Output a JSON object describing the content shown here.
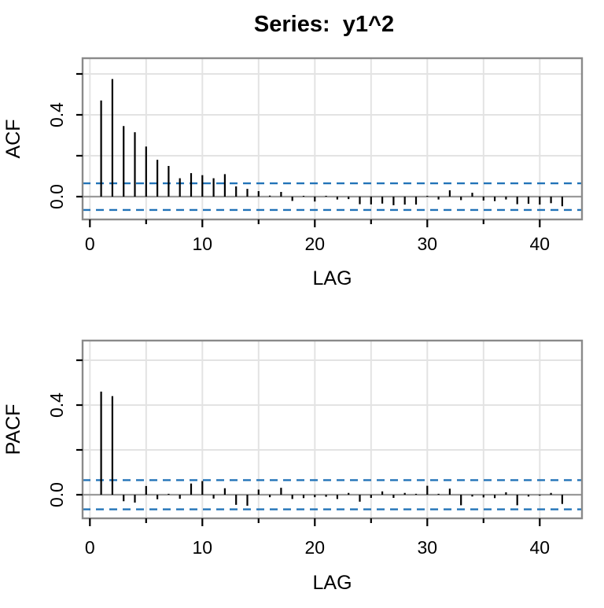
{
  "title": "Series:  y1^2",
  "colors": {
    "bar": "#000000",
    "ci_line": "#2273b8",
    "zero_line": "#9a9a9a",
    "grid": "#e3e3e3",
    "border": "#8a8a8a",
    "background": "#ffffff",
    "text": "#000000"
  },
  "chart_data": [
    {
      "type": "bar",
      "subtype": "stem-acf",
      "name": "ACF",
      "ylabel": "ACF",
      "xlabel": "LAG",
      "lags": [
        1,
        2,
        3,
        4,
        5,
        6,
        7,
        8,
        9,
        10,
        11,
        12,
        13,
        14,
        15,
        16,
        17,
        18,
        19,
        20,
        21,
        22,
        23,
        24,
        25,
        26,
        27,
        28,
        29,
        30,
        31,
        32,
        33,
        34,
        35,
        36,
        37,
        38,
        39,
        40,
        41,
        42
      ],
      "values": [
        0.47,
        0.575,
        0.345,
        0.315,
        0.245,
        0.18,
        0.15,
        0.09,
        0.115,
        0.105,
        0.09,
        0.11,
        0.05,
        0.038,
        0.027,
        0.005,
        0.023,
        -0.021,
        0.004,
        -0.024,
        0.004,
        -0.014,
        -0.012,
        -0.037,
        -0.038,
        -0.034,
        -0.042,
        -0.039,
        -0.039,
        0.004,
        -0.014,
        0.031,
        -0.017,
        0.019,
        -0.019,
        -0.022,
        -0.014,
        -0.037,
        -0.035,
        -0.039,
        -0.032,
        -0.047
      ],
      "conf_band": 0.065,
      "ylim": [
        -0.112,
        0.677
      ],
      "yticks": [
        0.0,
        0.2,
        0.4,
        0.6
      ],
      "ytick_labels": [
        "0.0",
        "",
        "0.4",
        ""
      ],
      "xticks": [
        0,
        5,
        10,
        15,
        20,
        25,
        30,
        35,
        40
      ],
      "xtick_labels": [
        "0",
        "",
        "10",
        "",
        "20",
        "",
        "30",
        "",
        "40"
      ],
      "grid": true,
      "legend": "none"
    },
    {
      "type": "bar",
      "subtype": "stem-pacf",
      "name": "PACF",
      "ylabel": "PACF",
      "xlabel": "LAG",
      "lags": [
        1,
        2,
        3,
        4,
        5,
        6,
        7,
        8,
        9,
        10,
        11,
        12,
        13,
        14,
        15,
        16,
        17,
        18,
        19,
        20,
        21,
        22,
        23,
        24,
        25,
        26,
        27,
        28,
        29,
        30,
        31,
        32,
        33,
        34,
        35,
        36,
        37,
        38,
        39,
        40,
        41,
        42
      ],
      "values": [
        0.46,
        0.44,
        -0.029,
        -0.035,
        0.039,
        -0.02,
        0.004,
        -0.018,
        0.05,
        0.061,
        -0.017,
        0.029,
        -0.045,
        -0.049,
        0.023,
        -0.011,
        0.031,
        -0.019,
        -0.015,
        -0.011,
        -0.009,
        -0.019,
        0.008,
        -0.031,
        -0.014,
        0.015,
        -0.014,
        0.008,
        0.004,
        0.04,
        0.004,
        0.027,
        -0.047,
        -0.008,
        -0.012,
        -0.015,
        0.011,
        -0.047,
        -0.008,
        -0.004,
        0.008,
        -0.041
      ],
      "conf_band": 0.065,
      "ylim": [
        -0.105,
        0.688
      ],
      "yticks": [
        0.0,
        0.2,
        0.4,
        0.6
      ],
      "ytick_labels": [
        "0.0",
        "",
        "0.4",
        ""
      ],
      "xticks": [
        0,
        5,
        10,
        15,
        20,
        25,
        30,
        35,
        40
      ],
      "xtick_labels": [
        "0",
        "",
        "10",
        "",
        "20",
        "",
        "30",
        "",
        "40"
      ],
      "grid": true,
      "legend": "none"
    }
  ]
}
